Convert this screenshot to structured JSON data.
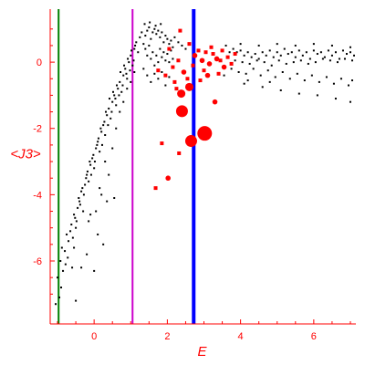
{
  "chart_data": {
    "type": "scatter",
    "title": "",
    "xlabel": "E",
    "ylabel": "<J3>",
    "xlim": [
      -1.2,
      7.15
    ],
    "ylim": [
      -7.9,
      1.6
    ],
    "x_ticks": [
      {
        "value": 0,
        "label": "0"
      },
      {
        "value": 2,
        "label": "2"
      },
      {
        "value": 4,
        "label": "4"
      },
      {
        "value": 6,
        "label": "6"
      }
    ],
    "y_ticks": [
      {
        "value": 0,
        "label": "0"
      },
      {
        "value": -2,
        "label": "-2"
      },
      {
        "value": -4,
        "label": "-4"
      },
      {
        "value": -6,
        "label": "-6"
      }
    ],
    "grid": false,
    "colors": {
      "axis": "#ff0000",
      "small_points": "#000000",
      "large_points": "#ff0000",
      "line_green": "#008000",
      "line_magenta": "#cc00cc",
      "line_blue": "#0000ff"
    },
    "vertical_lines": [
      {
        "x": -0.97,
        "color": "#008000"
      },
      {
        "x": 1.05,
        "color": "#cc00cc"
      },
      {
        "x": 2.72,
        "color": "#0000ff"
      }
    ],
    "large_points": [
      {
        "x": 2.02,
        "y": -3.5,
        "size": 1
      },
      {
        "x": 1.68,
        "y": -3.8,
        "size": 0
      },
      {
        "x": 1.85,
        "y": -2.45,
        "size": 0
      },
      {
        "x": 2.32,
        "y": -2.75,
        "size": 0
      },
      {
        "x": 2.65,
        "y": -2.38,
        "size": 3
      },
      {
        "x": 3.02,
        "y": -2.15,
        "size": 4
      },
      {
        "x": 2.4,
        "y": -1.48,
        "size": 3
      },
      {
        "x": 2.38,
        "y": -0.95,
        "size": 2
      },
      {
        "x": 2.6,
        "y": -0.75,
        "size": 2
      },
      {
        "x": 3.3,
        "y": -1.2,
        "size": 1
      },
      {
        "x": 2.2,
        "y": -0.6,
        "size": 0
      },
      {
        "x": 2.45,
        "y": -0.3,
        "size": 1
      },
      {
        "x": 2.55,
        "y": -0.5,
        "size": 0
      },
      {
        "x": 2.9,
        "y": -0.55,
        "size": 0
      },
      {
        "x": 3.1,
        "y": -0.4,
        "size": 1
      },
      {
        "x": 2.75,
        "y": 0.2,
        "size": 1
      },
      {
        "x": 2.95,
        "y": 0.05,
        "size": 1
      },
      {
        "x": 3.15,
        "y": -0.05,
        "size": 1
      },
      {
        "x": 3.35,
        "y": 0.1,
        "size": 1
      },
      {
        "x": 3.55,
        "y": -0.15,
        "size": 1
      },
      {
        "x": 2.85,
        "y": 0.35,
        "size": 0
      },
      {
        "x": 3.05,
        "y": 0.3,
        "size": 0
      },
      {
        "x": 3.25,
        "y": 0.25,
        "size": 0
      },
      {
        "x": 3.45,
        "y": 0.05,
        "size": 0
      },
      {
        "x": 3.65,
        "y": 0.15,
        "size": 0
      },
      {
        "x": 3.75,
        "y": -0.05,
        "size": 0
      },
      {
        "x": 2.7,
        "y": -0.1,
        "size": 0
      },
      {
        "x": 2.15,
        "y": -0.15,
        "size": 0
      },
      {
        "x": 2.3,
        "y": 0.05,
        "size": 0
      },
      {
        "x": 1.95,
        "y": -0.4,
        "size": 0
      },
      {
        "x": 2.35,
        "y": 0.95,
        "size": 0
      },
      {
        "x": 3.2,
        "y": 0.45,
        "size": 0
      },
      {
        "x": 3.5,
        "y": 0.35,
        "size": 0
      },
      {
        "x": 3.85,
        "y": 0.25,
        "size": 0
      },
      {
        "x": 2.6,
        "y": 0.55,
        "size": 0
      },
      {
        "x": 2.05,
        "y": 0.4,
        "size": 0
      },
      {
        "x": 1.75,
        "y": -0.25,
        "size": 0
      },
      {
        "x": 2.25,
        "y": -0.8,
        "size": 0
      },
      {
        "x": 3.0,
        "y": -0.25,
        "size": 0
      },
      {
        "x": 3.4,
        "y": -0.35,
        "size": 0
      }
    ],
    "small_points": [
      [
        -1.05,
        -7.3
      ],
      [
        -0.95,
        -7.1
      ],
      [
        -1.0,
        -6.5
      ],
      [
        -0.92,
        -6.0
      ],
      [
        -0.88,
        -5.6
      ],
      [
        -0.8,
        -5.7
      ],
      [
        -0.75,
        -5.2
      ],
      [
        -0.7,
        -5.4
      ],
      [
        -0.62,
        -4.9
      ],
      [
        -0.55,
        -4.6
      ],
      [
        -0.5,
        -5.0
      ],
      [
        -0.45,
        -4.4
      ],
      [
        -0.4,
        -4.2
      ],
      [
        -0.35,
        -3.9
      ],
      [
        -0.3,
        -4.5
      ],
      [
        -0.25,
        -3.7
      ],
      [
        -0.2,
        -3.4
      ],
      [
        -0.15,
        -3.6
      ],
      [
        -0.1,
        -3.1
      ],
      [
        -0.05,
        -2.9
      ],
      [
        0.0,
        -3.2
      ],
      [
        0.05,
        -2.6
      ],
      [
        0.1,
        -2.4
      ],
      [
        0.15,
        -2.7
      ],
      [
        0.2,
        -2.1
      ],
      [
        0.25,
        -1.9
      ],
      [
        0.3,
        -2.2
      ],
      [
        0.35,
        -1.6
      ],
      [
        0.4,
        -1.4
      ],
      [
        0.45,
        -1.7
      ],
      [
        0.5,
        -1.2
      ],
      [
        0.55,
        -1.0
      ],
      [
        0.6,
        -1.3
      ],
      [
        0.65,
        -0.8
      ],
      [
        0.7,
        -0.6
      ],
      [
        0.75,
        -0.9
      ],
      [
        0.8,
        -0.4
      ],
      [
        0.85,
        -0.2
      ],
      [
        0.9,
        -0.5
      ],
      [
        0.95,
        0.0
      ],
      [
        1.0,
        0.2
      ],
      [
        1.05,
        -0.1
      ],
      [
        1.1,
        0.4
      ],
      [
        1.15,
        0.6
      ],
      [
        1.2,
        0.3
      ],
      [
        1.25,
        0.75
      ],
      [
        1.3,
        0.9
      ],
      [
        1.35,
        0.55
      ],
      [
        -0.9,
        -6.8
      ],
      [
        -0.85,
        -6.3
      ],
      [
        -0.78,
        -6.1
      ],
      [
        -0.72,
        -5.9
      ],
      [
        -0.65,
        -5.1
      ],
      [
        -0.58,
        -5.3
      ],
      [
        -0.52,
        -4.7
      ],
      [
        -0.48,
        -4.8
      ],
      [
        -0.42,
        -4.1
      ],
      [
        -0.38,
        -4.3
      ],
      [
        -0.32,
        -3.8
      ],
      [
        -0.28,
        -4.0
      ],
      [
        -0.22,
        -3.5
      ],
      [
        -0.18,
        -3.3
      ],
      [
        -0.12,
        -3.0
      ],
      [
        -0.08,
        -3.4
      ],
      [
        -0.02,
        -2.8
      ],
      [
        0.02,
        -3.0
      ],
      [
        0.08,
        -2.5
      ],
      [
        0.12,
        -2.3
      ],
      [
        0.18,
        -2.0
      ],
      [
        0.22,
        -2.5
      ],
      [
        0.28,
        -1.8
      ],
      [
        0.32,
        -1.5
      ],
      [
        0.38,
        -1.9
      ],
      [
        0.42,
        -1.1
      ],
      [
        0.48,
        -1.5
      ],
      [
        0.52,
        -0.9
      ],
      [
        0.58,
        -1.1
      ],
      [
        0.62,
        -0.7
      ],
      [
        0.68,
        -1.0
      ],
      [
        0.72,
        -0.3
      ],
      [
        0.78,
        -0.7
      ],
      [
        0.82,
        -0.1
      ],
      [
        0.88,
        -0.35
      ],
      [
        0.92,
        0.1
      ],
      [
        0.98,
        -0.25
      ],
      [
        1.02,
        0.35
      ],
      [
        1.08,
        0.05
      ],
      [
        1.12,
        0.5
      ],
      [
        -0.35,
        -6.2
      ],
      [
        -0.55,
        -5.6
      ],
      [
        -0.15,
        -4.8
      ],
      [
        0.05,
        -4.5
      ],
      [
        0.15,
        -3.8
      ],
      [
        0.3,
        -3.0
      ],
      [
        0.4,
        -3.4
      ],
      [
        0.5,
        -2.6
      ],
      [
        0.6,
        -2.0
      ],
      [
        0.7,
        -1.5
      ],
      [
        0.8,
        -1.2
      ],
      [
        0.9,
        -0.8
      ],
      [
        1.0,
        -0.6
      ],
      [
        1.1,
        -0.3
      ],
      [
        0.55,
        -4.1
      ],
      [
        0.25,
        -5.5
      ],
      [
        1.4,
        0.8
      ],
      [
        1.45,
        0.95
      ],
      [
        1.5,
        1.05
      ],
      [
        1.55,
        0.7
      ],
      [
        1.6,
        0.9
      ],
      [
        1.65,
        1.0
      ],
      [
        1.7,
        0.85
      ],
      [
        1.75,
        0.95
      ],
      [
        1.8,
        0.75
      ],
      [
        1.85,
        0.9
      ],
      [
        1.9,
        0.6
      ],
      [
        1.95,
        0.8
      ],
      [
        2.0,
        0.7
      ],
      [
        2.05,
        0.55
      ],
      [
        2.1,
        0.65
      ],
      [
        2.15,
        0.45
      ],
      [
        1.4,
        0.4
      ],
      [
        1.45,
        0.2
      ],
      [
        1.5,
        0.5
      ],
      [
        1.55,
        0.1
      ],
      [
        1.6,
        0.3
      ],
      [
        1.65,
        -0.1
      ],
      [
        1.7,
        0.2
      ],
      [
        1.75,
        0.0
      ],
      [
        1.8,
        0.4
      ],
      [
        1.85,
        0.15
      ],
      [
        1.9,
        0.3
      ],
      [
        1.95,
        0.05
      ],
      [
        2.0,
        0.25
      ],
      [
        2.05,
        0.0
      ],
      [
        2.1,
        0.35
      ],
      [
        2.15,
        0.1
      ],
      [
        1.35,
        -0.2
      ],
      [
        1.45,
        -0.4
      ],
      [
        1.55,
        -0.6
      ],
      [
        1.65,
        -0.35
      ],
      [
        1.75,
        -0.5
      ],
      [
        1.85,
        -0.3
      ],
      [
        1.95,
        -0.7
      ],
      [
        2.05,
        -0.45
      ],
      [
        1.38,
        1.15
      ],
      [
        1.52,
        1.2
      ],
      [
        1.68,
        1.1
      ],
      [
        1.82,
        1.15
      ],
      [
        2.2,
        0.75
      ],
      [
        2.3,
        0.6
      ],
      [
        2.4,
        0.5
      ],
      [
        2.5,
        0.4
      ],
      [
        3.8,
        0.4
      ],
      [
        3.9,
        0.3
      ],
      [
        4.0,
        0.35
      ],
      [
        4.1,
        0.2
      ],
      [
        4.2,
        0.3
      ],
      [
        4.3,
        0.15
      ],
      [
        4.4,
        0.25
      ],
      [
        4.5,
        0.1
      ],
      [
        4.6,
        0.3
      ],
      [
        4.7,
        0.2
      ],
      [
        4.8,
        0.35
      ],
      [
        4.9,
        0.15
      ],
      [
        5.0,
        0.3
      ],
      [
        5.1,
        0.2
      ],
      [
        5.2,
        0.4
      ],
      [
        5.3,
        0.25
      ],
      [
        5.4,
        0.3
      ],
      [
        5.5,
        0.15
      ],
      [
        5.6,
        0.35
      ],
      [
        5.7,
        0.2
      ],
      [
        5.8,
        0.3
      ],
      [
        5.9,
        0.1
      ],
      [
        6.0,
        0.35
      ],
      [
        6.1,
        0.25
      ],
      [
        6.2,
        0.3
      ],
      [
        6.3,
        0.15
      ],
      [
        6.4,
        0.35
      ],
      [
        6.5,
        0.2
      ],
      [
        6.6,
        0.3
      ],
      [
        6.7,
        0.1
      ],
      [
        6.8,
        0.35
      ],
      [
        6.9,
        0.25
      ],
      [
        7.0,
        0.3
      ],
      [
        7.1,
        0.2
      ],
      [
        3.85,
        0.05
      ],
      [
        4.05,
        0.0
      ],
      [
        4.25,
        -0.05
      ],
      [
        4.45,
        0.05
      ],
      [
        4.65,
        0.0
      ],
      [
        4.85,
        -0.1
      ],
      [
        5.05,
        0.05
      ],
      [
        5.25,
        -0.05
      ],
      [
        5.45,
        0.0
      ],
      [
        5.65,
        0.05
      ],
      [
        5.85,
        -0.05
      ],
      [
        6.05,
        0.0
      ],
      [
        6.25,
        0.1
      ],
      [
        6.45,
        0.05
      ],
      [
        6.65,
        0.0
      ],
      [
        6.85,
        0.1
      ],
      [
        7.05,
        0.05
      ],
      [
        3.95,
        -0.3
      ],
      [
        4.15,
        -0.35
      ],
      [
        4.35,
        -0.2
      ],
      [
        4.55,
        -0.4
      ],
      [
        4.75,
        -0.25
      ],
      [
        4.95,
        -0.45
      ],
      [
        5.15,
        -0.3
      ],
      [
        5.35,
        -0.5
      ],
      [
        5.55,
        -0.35
      ],
      [
        5.75,
        -0.55
      ],
      [
        5.95,
        -0.4
      ],
      [
        6.15,
        -0.6
      ],
      [
        6.35,
        -0.45
      ],
      [
        6.55,
        -0.65
      ],
      [
        6.75,
        -0.5
      ],
      [
        6.95,
        -0.7
      ],
      [
        7.05,
        -0.55
      ],
      [
        4.1,
        -0.65
      ],
      [
        4.6,
        -0.75
      ],
      [
        5.1,
        -0.85
      ],
      [
        5.6,
        -0.95
      ],
      [
        6.1,
        -1.0
      ],
      [
        6.6,
        -1.1
      ],
      [
        7.0,
        -1.2
      ],
      [
        4.0,
        0.55
      ],
      [
        4.5,
        0.5
      ],
      [
        5.0,
        0.55
      ],
      [
        5.5,
        0.5
      ],
      [
        6.0,
        0.55
      ],
      [
        6.5,
        0.5
      ],
      [
        7.0,
        0.45
      ],
      [
        3.6,
        0.5
      ],
      [
        3.7,
        0.3
      ],
      [
        3.75,
        -0.2
      ],
      [
        3.55,
        -0.4
      ],
      [
        4.2,
        -0.55
      ],
      [
        4.8,
        -0.6
      ],
      [
        -0.6,
        -6.2
      ],
      [
        -0.2,
        -5.8
      ],
      [
        0.1,
        -5.2
      ],
      [
        -0.1,
        -4.6
      ],
      [
        0.35,
        -4.2
      ],
      [
        0.0,
        -6.3
      ],
      [
        -0.5,
        -7.2
      ],
      [
        0.2,
        -4.0
      ]
    ]
  }
}
